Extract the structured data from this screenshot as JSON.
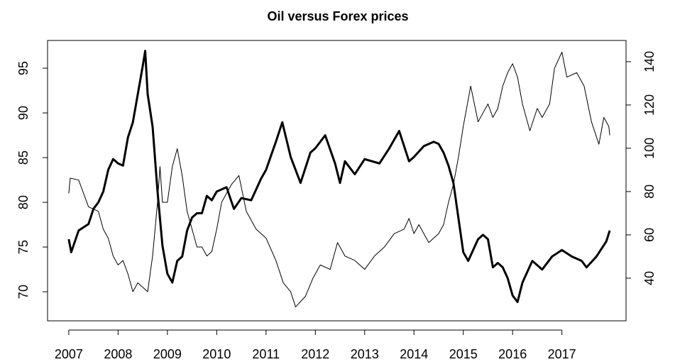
{
  "chart_data": {
    "type": "line",
    "title": "Oil versus Forex prices",
    "xlim": [
      2006.57,
      2018.3
    ],
    "xticks": [
      2007,
      2008,
      2009,
      2010,
      2011,
      2012,
      2013,
      2014,
      2015,
      2016,
      2017
    ],
    "ylim": [
      66.75,
      98.1
    ],
    "yticks": [
      70,
      75,
      80,
      85,
      90,
      95
    ],
    "y2lim": [
      20.3,
      149.8
    ],
    "y2ticks": [
      40,
      60,
      80,
      100,
      120,
      140
    ],
    "series": [
      {
        "color": "#000000",
        "width": 1,
        "axis": "y",
        "x": [
          2007.0,
          2007.03,
          2007.2,
          2007.3,
          2007.4,
          2007.6,
          2007.7,
          2007.8,
          2007.9,
          2008.0,
          2008.1,
          2008.2,
          2008.3,
          2008.4,
          2008.5,
          2008.6,
          2008.7,
          2008.8,
          2008.85,
          2008.9,
          2009.0,
          2009.1,
          2009.2,
          2009.3,
          2009.4,
          2009.5,
          2009.6,
          2009.7,
          2009.8,
          2009.9,
          2010.0,
          2010.1,
          2010.2,
          2010.3,
          2010.45,
          2010.6,
          2010.8,
          2011.0,
          2011.2,
          2011.35,
          2011.5,
          2011.6,
          2011.8,
          2011.95,
          2012.1,
          2012.3,
          2012.45,
          2012.6,
          2012.8,
          2013.0,
          2013.2,
          2013.4,
          2013.6,
          2013.8,
          2013.9,
          2014.0,
          2014.1,
          2014.3,
          2014.5,
          2014.6,
          2014.7,
          2014.8,
          2014.9,
          2015.0,
          2015.15,
          2015.3,
          2015.4,
          2015.5,
          2015.6,
          2015.7,
          2015.8,
          2015.9,
          2016.0,
          2016.1,
          2016.2,
          2016.35,
          2016.5,
          2016.6,
          2016.75,
          2016.85,
          2017.0,
          2017.1,
          2017.3,
          2017.45,
          2017.6,
          2017.75,
          2017.85,
          2017.95,
          2017.97
        ],
        "values": [
          81,
          82.7,
          82.5,
          81,
          79.5,
          79,
          77,
          76,
          74,
          73,
          73.5,
          72,
          70,
          71,
          70.5,
          70,
          74,
          80,
          84,
          80,
          80,
          84,
          86,
          83,
          79,
          77,
          75,
          75,
          74,
          74.5,
          77,
          80,
          81,
          82,
          83,
          79,
          77,
          76,
          73.5,
          71,
          70,
          68.3,
          69.5,
          71.5,
          73,
          72.5,
          75.5,
          74,
          73.5,
          72.5,
          74,
          75,
          76.5,
          77,
          78.2,
          76.5,
          77.5,
          75.5,
          76.5,
          77.5,
          80,
          82,
          85,
          88.5,
          93,
          89,
          90,
          91,
          89.5,
          90.5,
          93,
          94.5,
          95.5,
          94,
          91,
          88,
          90.5,
          89.5,
          91,
          95,
          96.8,
          94,
          94.5,
          93,
          89,
          86.5,
          89.5,
          88.5,
          87.5
        ]
      },
      {
        "color": "#000000",
        "width": 3,
        "axis": "y2",
        "x": [
          2007.0,
          2007.05,
          2007.2,
          2007.4,
          2007.5,
          2007.6,
          2007.7,
          2007.8,
          2007.9,
          2008.0,
          2008.1,
          2008.2,
          2008.3,
          2008.4,
          2008.5,
          2008.55,
          2008.6,
          2008.7,
          2008.8,
          2008.9,
          2009.0,
          2009.1,
          2009.2,
          2009.3,
          2009.4,
          2009.5,
          2009.6,
          2009.7,
          2009.8,
          2009.9,
          2010.0,
          2010.2,
          2010.35,
          2010.5,
          2010.7,
          2010.9,
          2011.0,
          2011.2,
          2011.33,
          2011.5,
          2011.7,
          2011.9,
          2012.0,
          2012.2,
          2012.4,
          2012.5,
          2012.6,
          2012.8,
          2013.0,
          2013.3,
          2013.5,
          2013.7,
          2013.9,
          2014.0,
          2014.2,
          2014.4,
          2014.5,
          2014.6,
          2014.7,
          2014.8,
          2014.9,
          2015.0,
          2015.1,
          2015.3,
          2015.4,
          2015.5,
          2015.6,
          2015.7,
          2015.8,
          2015.9,
          2016.0,
          2016.1,
          2016.2,
          2016.4,
          2016.6,
          2016.8,
          2017.0,
          2017.2,
          2017.4,
          2017.5,
          2017.7,
          2017.9,
          2017.97
        ],
        "values": [
          58,
          52,
          62,
          65,
          72,
          75,
          80,
          90,
          95,
          93,
          92,
          105,
          112,
          125,
          138,
          145,
          125,
          110,
          80,
          55,
          42,
          38,
          48,
          50,
          62,
          68,
          70,
          70,
          78,
          76,
          80,
          82,
          72,
          77,
          76,
          86,
          90,
          103,
          112,
          96,
          84,
          98,
          100,
          106,
          93,
          84,
          94,
          88,
          95,
          93,
          100,
          108,
          94,
          96,
          101,
          103,
          102,
          98,
          92,
          84,
          68,
          52,
          48,
          58,
          60,
          58,
          45,
          47,
          45,
          40,
          32,
          29,
          38,
          48,
          44,
          50,
          53,
          50,
          48,
          45,
          50,
          57,
          62
        ]
      }
    ]
  }
}
